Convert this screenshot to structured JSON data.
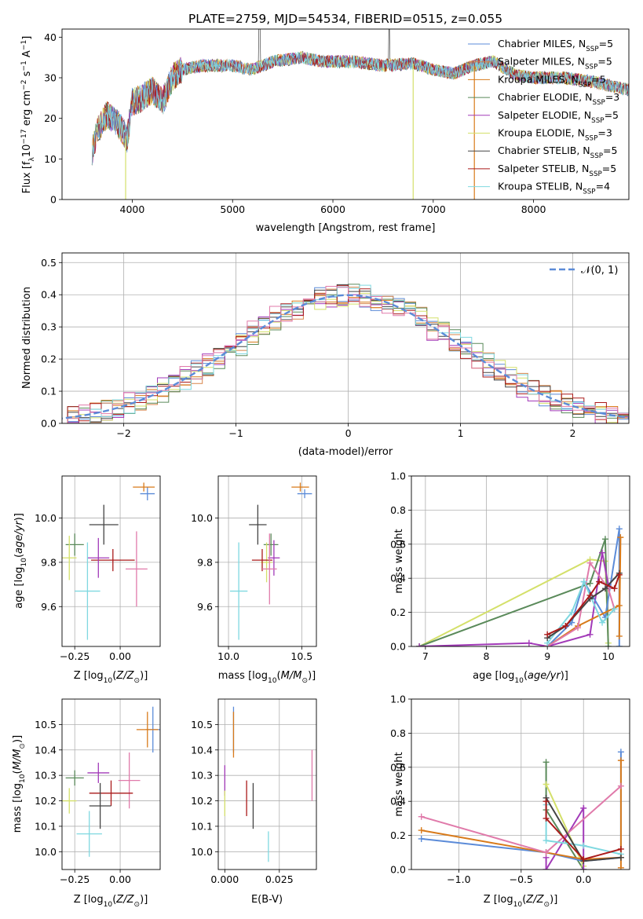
{
  "figure_title": "PLATE=2759, MJD=54534, FIBERID=0515, z=0.055",
  "colors": {
    "Chabrier MILES": "#5b8bd8",
    "Salpeter MILES": "#d8854b",
    "Kroupa MILES": "#d87a1a",
    "Chabrier ELODIE": "#5a8a5a",
    "Salpeter ELODIE": "#a23ab8",
    "Kroupa ELODIE": "#d4e06a",
    "Chabrier STELIB": "#444444",
    "Salpeter STELIB": "#aa1a1a",
    "Kroupa STELIB": "#7fd8e0",
    "pink": "#e07aaa",
    "normal": "#5b8bd8"
  },
  "chart_data": [
    {
      "id": "spectrum",
      "type": "line",
      "xlabel": "wavelength [Angstrom, rest frame]",
      "ylabel": "Flux [f",
      "xlim": [
        3300,
        8950
      ],
      "ylim": [
        0,
        42
      ],
      "xticks": [
        4000,
        5000,
        6000,
        7000,
        8000
      ],
      "yticks": [
        0,
        10,
        20,
        30,
        40
      ],
      "legend_position": "upper-right",
      "legend": [
        {
          "name": "Chabrier MILES",
          "nssp": "5"
        },
        {
          "name": "Salpeter MILES",
          "nssp": "5"
        },
        {
          "name": "Kroupa MILES",
          "nssp": "5"
        },
        {
          "name": "Chabrier ELODIE",
          "nssp": "3"
        },
        {
          "name": "Salpeter ELODIE",
          "nssp": "5"
        },
        {
          "name": "Kroupa ELODIE",
          "nssp": "3"
        },
        {
          "name": "Chabrier STELIB",
          "nssp": "5"
        },
        {
          "name": "Salpeter STELIB",
          "nssp": "5"
        },
        {
          "name": "Kroupa STELIB",
          "nssp": "4"
        }
      ],
      "continuum": [
        [
          3600,
          12
        ],
        [
          3650,
          17
        ],
        [
          3750,
          21
        ],
        [
          3850,
          19
        ],
        [
          3950,
          15
        ],
        [
          4000,
          24
        ],
        [
          4100,
          25
        ],
        [
          4200,
          27
        ],
        [
          4300,
          24
        ],
        [
          4400,
          30
        ],
        [
          4500,
          32
        ],
        [
          4700,
          33
        ],
        [
          5000,
          33
        ],
        [
          5200,
          32
        ],
        [
          5400,
          34
        ],
        [
          5700,
          35
        ],
        [
          5900,
          34
        ],
        [
          6200,
          34
        ],
        [
          6500,
          33
        ],
        [
          6800,
          33.5
        ],
        [
          7000,
          32
        ],
        [
          7200,
          31
        ],
        [
          7400,
          33
        ],
        [
          7600,
          34
        ],
        [
          7800,
          31
        ],
        [
          8000,
          30
        ],
        [
          8300,
          30
        ],
        [
          8600,
          29
        ],
        [
          8950,
          27
        ]
      ],
      "dips": [
        [
          3934,
          0
        ],
        [
          6800,
          0
        ],
        [
          7410,
          0
        ]
      ]
    },
    {
      "id": "residuals",
      "type": "histogram",
      "xlabel": "(data-model)/error",
      "ylabel": "Normed distribution",
      "xlim": [
        -2.55,
        2.5
      ],
      "ylim": [
        0,
        0.53
      ],
      "xticks": [
        -2,
        -1,
        0,
        1,
        2
      ],
      "yticks": [
        0.0,
        0.1,
        0.2,
        0.3,
        0.4,
        0.5
      ],
      "legend": [
        "𝒩(0, 1)"
      ],
      "legend_position": "upper-right",
      "bin_width": 0.1,
      "bin_start": -2.6,
      "series_offsets": [
        0.01,
        -0.012,
        0.015,
        -0.02,
        0.02,
        -0.008,
        0.005,
        0.012,
        -0.015,
        0.018
      ]
    },
    {
      "id": "age-vs-Z",
      "type": "errorbar",
      "xlabel": "Z [log",
      "ylabel": "age  [log",
      "xlim": [
        -0.32,
        0.22
      ],
      "ylim": [
        9.42,
        10.19
      ],
      "xticks": [
        -0.25,
        0.0
      ],
      "yticks": [
        9.6,
        9.8,
        10.0
      ],
      "points": [
        {
          "c": "Chabrier MILES",
          "x": 0.15,
          "y": 10.11,
          "ex": 0.04,
          "ey": 0.03
        },
        {
          "c": "Kroupa MILES",
          "x": 0.13,
          "y": 10.14,
          "ex": 0.06,
          "ey": 0.02
        },
        {
          "c": "Chabrier STELIB",
          "x": -0.09,
          "y": 9.97,
          "ex": 0.08,
          "ey": 0.09
        },
        {
          "c": "Chabrier ELODIE",
          "x": -0.25,
          "y": 9.88,
          "ex": 0.05,
          "ey": 0.05
        },
        {
          "c": "Kroupa ELODIE",
          "x": -0.28,
          "y": 9.82,
          "ex": 0.04,
          "ey": 0.1
        },
        {
          "c": "Salpeter STELIB",
          "x": -0.04,
          "y": 9.81,
          "ex": 0.12,
          "ey": 0.05
        },
        {
          "c": "Salpeter ELODIE",
          "x": -0.12,
          "y": 9.82,
          "ex": 0.06,
          "ey": 0.09
        },
        {
          "c": "pink",
          "x": 0.09,
          "y": 9.77,
          "ex": 0.06,
          "ey": 0.17
        },
        {
          "c": "Kroupa STELIB",
          "x": -0.18,
          "y": 9.67,
          "ex": 0.07,
          "ey": 0.22
        }
      ]
    },
    {
      "id": "age-vs-mass",
      "type": "errorbar",
      "xlabel": "mass [log",
      "ylabel": "",
      "xlim": [
        9.93,
        10.6
      ],
      "ylim": [
        9.42,
        10.19
      ],
      "xticks": [
        10.0,
        10.5
      ],
      "yticks": [
        9.6,
        9.8,
        10.0
      ],
      "points": [
        {
          "c": "Chabrier MILES",
          "x": 10.52,
          "y": 10.11,
          "ex": 0.05,
          "ey": 0.02
        },
        {
          "c": "Kroupa MILES",
          "x": 10.49,
          "y": 10.14,
          "ex": 0.06,
          "ey": 0.02
        },
        {
          "c": "Chabrier STELIB",
          "x": 10.2,
          "y": 9.97,
          "ex": 0.06,
          "ey": 0.09
        },
        {
          "c": "Chabrier ELODIE",
          "x": 10.29,
          "y": 9.88,
          "ex": 0.05,
          "ey": 0.05
        },
        {
          "c": "Kroupa ELODIE",
          "x": 10.26,
          "y": 9.8,
          "ex": 0.04,
          "ey": 0.09
        },
        {
          "c": "Salpeter STELIB",
          "x": 10.23,
          "y": 9.81,
          "ex": 0.07,
          "ey": 0.05
        },
        {
          "c": "Salpeter ELODIE",
          "x": 10.31,
          "y": 9.82,
          "ex": 0.04,
          "ey": 0.08
        },
        {
          "c": "pink",
          "x": 10.28,
          "y": 9.77,
          "ex": 0.05,
          "ey": 0.16
        },
        {
          "c": "Kroupa STELIB",
          "x": 10.07,
          "y": 9.67,
          "ex": 0.06,
          "ey": 0.22
        }
      ]
    },
    {
      "id": "massweight-vs-age",
      "type": "line",
      "xlabel": "age  [log",
      "ylabel": "mass weight",
      "xlim": [
        6.77,
        10.35
      ],
      "ylim": [
        0,
        1.0
      ],
      "xticks": [
        7,
        8,
        9,
        10
      ],
      "yticks": [
        0.0,
        0.2,
        0.4,
        0.6,
        0.8,
        1.0
      ],
      "series": [
        {
          "c": "Kroupa ELODIE",
          "points": [
            [
              6.9,
              0.0
            ],
            [
              9.7,
              0.51
            ],
            [
              9.95,
              0.5
            ],
            [
              10.0,
              0.02
            ]
          ]
        },
        {
          "c": "Chabrier ELODIE",
          "points": [
            [
              6.9,
              0.0
            ],
            [
              9.7,
              0.37
            ],
            [
              9.95,
              0.63
            ],
            [
              10.0,
              0.0
            ]
          ]
        },
        {
          "c": "Salpeter ELODIE",
          "points": [
            [
              6.9,
              0.0
            ],
            [
              8.7,
              0.02
            ],
            [
              9.0,
              0.0
            ],
            [
              9.7,
              0.07
            ],
            [
              9.9,
              0.55
            ],
            [
              10.0,
              0.36
            ]
          ]
        },
        {
          "c": "Chabrier MILES",
          "points": [
            [
              9.0,
              0.0
            ],
            [
              9.4,
              0.14
            ],
            [
              9.6,
              0.38
            ],
            [
              9.95,
              0.17
            ],
            [
              10.18,
              0.69
            ],
            [
              10.18,
              0.0
            ]
          ]
        },
        {
          "c": "Kroupa MILES",
          "points": [
            [
              9.0,
              0.0
            ],
            [
              9.5,
              0.12
            ],
            [
              10.18,
              0.24
            ],
            [
              10.2,
              0.64
            ],
            [
              10.18,
              0.06
            ]
          ]
        },
        {
          "c": "pink",
          "points": [
            [
              9.0,
              0.0
            ],
            [
              9.5,
              0.11
            ],
            [
              9.7,
              0.49
            ],
            [
              10.0,
              0.34
            ],
            [
              10.1,
              0.22
            ]
          ]
        },
        {
          "c": "Kroupa STELIB",
          "points": [
            [
              9.0,
              0.02
            ],
            [
              9.4,
              0.2
            ],
            [
              9.6,
              0.38
            ],
            [
              9.9,
              0.14
            ],
            [
              10.1,
              0.22
            ]
          ]
        },
        {
          "c": "Chabrier STELIB",
          "points": [
            [
              9.0,
              0.05
            ],
            [
              9.3,
              0.12
            ],
            [
              9.7,
              0.28
            ],
            [
              9.95,
              0.34
            ],
            [
              10.18,
              0.43
            ]
          ]
        },
        {
          "c": "Salpeter STELIB",
          "points": [
            [
              9.0,
              0.07
            ],
            [
              9.3,
              0.12
            ],
            [
              9.7,
              0.3
            ],
            [
              9.85,
              0.38
            ],
            [
              10.1,
              0.34
            ],
            [
              10.18,
              0.42
            ]
          ]
        }
      ]
    },
    {
      "id": "mass-vs-Z",
      "type": "errorbar",
      "xlabel": "Z [log",
      "ylabel": "mass [log",
      "xlim": [
        -0.32,
        0.22
      ],
      "ylim": [
        9.93,
        10.6
      ],
      "xticks": [
        -0.25,
        0.0
      ],
      "yticks": [
        10.0,
        10.1,
        10.2,
        10.3,
        10.4,
        10.5
      ],
      "points": [
        {
          "c": "Chabrier MILES",
          "x": 0.18,
          "y": 10.48,
          "ex": 0.04,
          "ey": 0.09
        },
        {
          "c": "Kroupa MILES",
          "x": 0.15,
          "y": 10.48,
          "ex": 0.06,
          "ey": 0.07
        },
        {
          "c": "Chabrier ELODIE",
          "x": -0.25,
          "y": 10.29,
          "ex": 0.05,
          "ey": 0.03
        },
        {
          "c": "Salpeter ELODIE",
          "x": -0.12,
          "y": 10.31,
          "ex": 0.06,
          "ey": 0.04
        },
        {
          "c": "pink",
          "x": 0.05,
          "y": 10.28,
          "ex": 0.06,
          "ey": 0.11
        },
        {
          "c": "Salpeter STELIB",
          "x": -0.05,
          "y": 10.23,
          "ex": 0.12,
          "ey": 0.05
        },
        {
          "c": "Kroupa ELODIE",
          "x": -0.28,
          "y": 10.2,
          "ex": 0.04,
          "ey": 0.05
        },
        {
          "c": "Chabrier STELIB",
          "x": -0.11,
          "y": 10.18,
          "ex": 0.06,
          "ey": 0.09
        },
        {
          "c": "Kroupa STELIB",
          "x": -0.17,
          "y": 10.07,
          "ex": 0.07,
          "ey": 0.09
        }
      ]
    },
    {
      "id": "mass-vs-ebv",
      "type": "errorbar",
      "xlabel": "E(B-V)",
      "ylabel": "",
      "xlim": [
        -0.003,
        0.042
      ],
      "ylim": [
        9.93,
        10.6
      ],
      "xticks": [
        0.0,
        0.025
      ],
      "yticks": [
        10.0,
        10.1,
        10.2,
        10.3,
        10.4,
        10.5
      ],
      "points": [
        {
          "c": "Chabrier MILES",
          "x": 0.004,
          "y": 10.48,
          "ex": 0,
          "ey": 0.09
        },
        {
          "c": "Kroupa MILES",
          "x": 0.004,
          "y": 10.46,
          "ex": 0,
          "ey": 0.09
        },
        {
          "c": "Salpeter ELODIE",
          "x": 0.0,
          "y": 10.28,
          "ex": 0,
          "ey": 0.06
        },
        {
          "c": "Kroupa ELODIE",
          "x": 0.0,
          "y": 10.19,
          "ex": 0,
          "ey": 0.05
        },
        {
          "c": "Salpeter STELIB",
          "x": 0.01,
          "y": 10.21,
          "ex": 0,
          "ey": 0.07
        },
        {
          "c": "Chabrier STELIB",
          "x": 0.013,
          "y": 10.18,
          "ex": 0,
          "ey": 0.09
        },
        {
          "c": "Kroupa STELIB",
          "x": 0.02,
          "y": 10.02,
          "ex": 0,
          "ey": 0.06
        },
        {
          "c": "pink",
          "x": 0.04,
          "y": 10.3,
          "ex": 0,
          "ey": 0.1
        }
      ]
    },
    {
      "id": "massweight-vs-Z",
      "type": "line",
      "xlabel": "Z [log",
      "ylabel": "mass weight",
      "xlim": [
        -1.38,
        0.37
      ],
      "ylim": [
        0,
        1.0
      ],
      "xticks": [
        -1.0,
        -0.5,
        0.0
      ],
      "yticks": [
        0.0,
        0.2,
        0.4,
        0.6,
        0.8,
        1.0
      ],
      "series": [
        {
          "c": "Chabrier ELODIE",
          "points": [
            [
              -0.3,
              0.63
            ],
            [
              -0.3,
              0.35
            ],
            [
              0.0,
              0.0
            ]
          ]
        },
        {
          "c": "Kroupa ELODIE",
          "points": [
            [
              -0.3,
              0.5
            ],
            [
              0.0,
              0.02
            ]
          ]
        },
        {
          "c": "Salpeter ELODIE",
          "points": [
            [
              -0.3,
              0.07
            ],
            [
              -0.3,
              0.0
            ],
            [
              0.0,
              0.36
            ],
            [
              0.0,
              0.0
            ]
          ]
        },
        {
          "c": "Chabrier MILES",
          "points": [
            [
              -1.3,
              0.18
            ],
            [
              -0.3,
              0.1
            ],
            [
              0.0,
              0.05
            ],
            [
              0.3,
              0.07
            ],
            [
              0.3,
              0.69
            ]
          ]
        },
        {
          "c": "Kroupa MILES",
          "points": [
            [
              -1.3,
              0.23
            ],
            [
              -0.3,
              0.1
            ],
            [
              0.0,
              0.06
            ],
            [
              0.3,
              0.07
            ],
            [
              0.3,
              0.64
            ],
            [
              0.3,
              0.01
            ]
          ]
        },
        {
          "c": "pink",
          "points": [
            [
              -1.3,
              0.31
            ],
            [
              -0.3,
              0.1
            ],
            [
              0.3,
              0.49
            ]
          ]
        },
        {
          "c": "Kroupa STELIB",
          "points": [
            [
              -0.3,
              0.38
            ],
            [
              -0.3,
              0.17
            ],
            [
              0.0,
              0.14
            ],
            [
              0.3,
              0.09
            ]
          ]
        },
        {
          "c": "Chabrier STELIB",
          "points": [
            [
              -0.3,
              0.42
            ],
            [
              0.0,
              0.05
            ],
            [
              0.3,
              0.07
            ]
          ]
        },
        {
          "c": "Salpeter STELIB",
          "points": [
            [
              -0.3,
              0.4
            ],
            [
              -0.3,
              0.3
            ],
            [
              0.0,
              0.06
            ],
            [
              0.3,
              0.12
            ]
          ]
        }
      ]
    }
  ]
}
